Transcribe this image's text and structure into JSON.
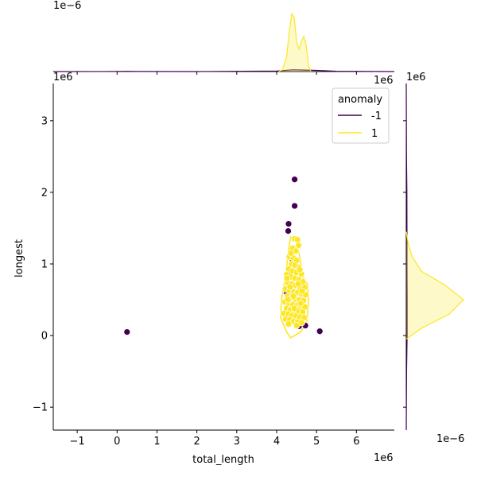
{
  "chart_data": {
    "type": "scatter",
    "title": "",
    "xlabel": "total_length",
    "ylabel": "longest",
    "x_scale_label": "1e6",
    "y_scale_label": "1e6",
    "top_marginal_scale_label": "1e−6",
    "right_top_scale_label": "1e6",
    "right_marginal_top_label": "1e6",
    "right_marginal_scale_label": "1e−6",
    "xlim": [
      -1.6,
      6.95
    ],
    "ylim": [
      -1.32,
      3.52
    ],
    "x_ticks": [
      -1,
      0,
      1,
      2,
      3,
      4,
      5,
      6
    ],
    "x_tick_labels": [
      "−1",
      "0",
      "1",
      "2",
      "3",
      "4",
      "5",
      "6"
    ],
    "y_ticks": [
      -1,
      0,
      1,
      2,
      3
    ],
    "y_tick_labels": [
      "−1",
      "0",
      "1",
      "2",
      "3"
    ],
    "legend": {
      "title": "anomaly",
      "placement": "top-right",
      "entries": [
        {
          "label": "-1",
          "color": "#440154"
        },
        {
          "label": "1",
          "color": "#fde725"
        }
      ]
    },
    "series": [
      {
        "name": "-1",
        "color": "#440154",
        "points": [
          [
            0.25,
            0.05
          ],
          [
            4.45,
            2.18
          ],
          [
            4.45,
            1.81
          ],
          [
            4.3,
            1.56
          ],
          [
            4.29,
            1.46
          ],
          [
            5.08,
            0.06
          ],
          [
            4.56,
            0.13
          ],
          [
            4.72,
            0.14
          ],
          [
            4.3,
            0.55
          ],
          [
            4.25,
            0.6
          ],
          [
            4.35,
            0.9
          ],
          [
            4.6,
            0.7
          ],
          [
            4.4,
            1.05
          ],
          [
            4.5,
            0.45
          ]
        ]
      },
      {
        "name": "1",
        "color": "#fde725",
        "points": [
          [
            4.45,
            1.35
          ],
          [
            4.52,
            1.34
          ],
          [
            4.55,
            1.26
          ],
          [
            4.4,
            1.22
          ],
          [
            4.48,
            1.18
          ],
          [
            4.32,
            1.1
          ],
          [
            4.42,
            1.08
          ],
          [
            4.5,
            1.05
          ],
          [
            4.38,
            1.0
          ],
          [
            4.46,
            0.98
          ],
          [
            4.56,
            0.95
          ],
          [
            4.3,
            0.93
          ],
          [
            4.4,
            0.9
          ],
          [
            4.5,
            0.88
          ],
          [
            4.62,
            0.86
          ],
          [
            4.25,
            0.85
          ],
          [
            4.36,
            0.82
          ],
          [
            4.46,
            0.8
          ],
          [
            4.56,
            0.78
          ],
          [
            4.66,
            0.75
          ],
          [
            4.28,
            0.74
          ],
          [
            4.38,
            0.72
          ],
          [
            4.48,
            0.7
          ],
          [
            4.58,
            0.68
          ],
          [
            4.7,
            0.67
          ],
          [
            4.22,
            0.65
          ],
          [
            4.33,
            0.63
          ],
          [
            4.43,
            0.61
          ],
          [
            4.53,
            0.6
          ],
          [
            4.63,
            0.58
          ],
          [
            4.73,
            0.57
          ],
          [
            4.27,
            0.55
          ],
          [
            4.37,
            0.53
          ],
          [
            4.47,
            0.51
          ],
          [
            4.57,
            0.5
          ],
          [
            4.67,
            0.49
          ],
          [
            4.2,
            0.47
          ],
          [
            4.31,
            0.45
          ],
          [
            4.41,
            0.43
          ],
          [
            4.51,
            0.42
          ],
          [
            4.61,
            0.41
          ],
          [
            4.71,
            0.4
          ],
          [
            4.25,
            0.38
          ],
          [
            4.35,
            0.36
          ],
          [
            4.45,
            0.35
          ],
          [
            4.55,
            0.34
          ],
          [
            4.65,
            0.33
          ],
          [
            4.18,
            0.31
          ],
          [
            4.29,
            0.3
          ],
          [
            4.39,
            0.28
          ],
          [
            4.49,
            0.27
          ],
          [
            4.59,
            0.26
          ],
          [
            4.69,
            0.25
          ],
          [
            4.23,
            0.23
          ],
          [
            4.33,
            0.22
          ],
          [
            4.43,
            0.2
          ],
          [
            4.53,
            0.19
          ],
          [
            4.63,
            0.18
          ],
          [
            4.3,
            0.16
          ],
          [
            4.5,
            0.14
          ],
          [
            4.6,
            0.45
          ],
          [
            4.42,
            0.55
          ],
          [
            4.34,
            0.68
          ],
          [
            4.54,
            0.72
          ],
          [
            4.44,
            0.38
          ],
          [
            4.64,
            0.62
          ],
          [
            4.28,
            0.5
          ],
          [
            4.58,
            0.92
          ],
          [
            4.36,
            1.15
          ],
          [
            4.26,
            0.8
          ]
        ]
      }
    ],
    "marginal_x_density": {
      "series": [
        {
          "name": "-1",
          "color": "#440154",
          "x": [
            -1.6,
            0.0,
            0.25,
            0.5,
            2.0,
            4.0,
            4.4,
            5.0,
            5.5,
            6.95
          ],
          "density": [
            0.0,
            0.001,
            0.004,
            0.001,
            0.0,
            0.01,
            0.03,
            0.02,
            0.005,
            0.0
          ]
        },
        {
          "name": "1",
          "color": "#fde725",
          "x": [
            4.05,
            4.15,
            4.25,
            4.32,
            4.38,
            4.44,
            4.5,
            4.56,
            4.62,
            4.68,
            4.74,
            4.8,
            4.86
          ],
          "density": [
            0.0,
            0.03,
            0.25,
            0.7,
            0.98,
            0.92,
            0.5,
            0.38,
            0.5,
            0.6,
            0.45,
            0.1,
            0.0
          ]
        }
      ]
    },
    "marginal_y_density": {
      "series": [
        {
          "name": "-1",
          "color": "#440154",
          "y": [
            -1.32,
            -0.5,
            0.0,
            0.5,
            1.0,
            1.5,
            2.0,
            2.5,
            3.52
          ],
          "density": [
            0.0,
            0.005,
            0.015,
            0.015,
            0.012,
            0.012,
            0.01,
            0.004,
            0.0
          ]
        },
        {
          "name": "1",
          "color": "#fde725",
          "y": [
            -0.05,
            0.1,
            0.3,
            0.5,
            0.7,
            0.9,
            1.1,
            1.3,
            1.45
          ],
          "density": [
            0.0,
            0.25,
            0.72,
            0.96,
            0.66,
            0.25,
            0.1,
            0.03,
            0.0
          ]
        }
      ]
    }
  }
}
